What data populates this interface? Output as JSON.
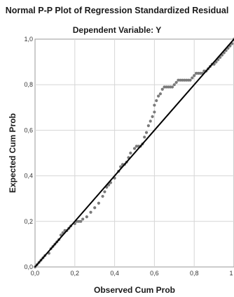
{
  "chart_data": {
    "type": "scatter",
    "title": "Normal P-P Plot of Regression Standardized Residual",
    "subtitle": "Dependent Variable: Y",
    "xlabel": "Observed Cum Prob",
    "ylabel": "Expected Cum Prob",
    "xlim": [
      0,
      1
    ],
    "ylim": [
      0,
      1
    ],
    "x_ticks": [
      "0,0",
      "0,2",
      "0,4",
      "0,6",
      "0,8",
      "1"
    ],
    "y_ticks": [
      "0,0",
      "0,2",
      "0,4",
      "0,6",
      "0,8",
      "1,0"
    ],
    "grid": true,
    "reference_line": {
      "from": [
        0,
        0
      ],
      "to": [
        1,
        1
      ],
      "color": "#000000"
    },
    "point_color": "#7a7a7a",
    "points": [
      [
        0.0,
        0.0
      ],
      [
        0.01,
        0.01
      ],
      [
        0.02,
        0.02
      ],
      [
        0.03,
        0.03
      ],
      [
        0.04,
        0.04
      ],
      [
        0.05,
        0.05
      ],
      [
        0.07,
        0.06
      ],
      [
        0.08,
        0.08
      ],
      [
        0.09,
        0.09
      ],
      [
        0.1,
        0.1
      ],
      [
        0.11,
        0.11
      ],
      [
        0.12,
        0.12
      ],
      [
        0.13,
        0.14
      ],
      [
        0.14,
        0.15
      ],
      [
        0.15,
        0.16
      ],
      [
        0.16,
        0.16
      ],
      [
        0.17,
        0.17
      ],
      [
        0.18,
        0.18
      ],
      [
        0.2,
        0.19
      ],
      [
        0.21,
        0.2
      ],
      [
        0.22,
        0.2
      ],
      [
        0.23,
        0.2
      ],
      [
        0.24,
        0.21
      ],
      [
        0.26,
        0.22
      ],
      [
        0.28,
        0.24
      ],
      [
        0.3,
        0.26
      ],
      [
        0.32,
        0.28
      ],
      [
        0.34,
        0.31
      ],
      [
        0.35,
        0.33
      ],
      [
        0.36,
        0.35
      ],
      [
        0.37,
        0.36
      ],
      [
        0.38,
        0.37
      ],
      [
        0.4,
        0.39
      ],
      [
        0.42,
        0.42
      ],
      [
        0.43,
        0.44
      ],
      [
        0.44,
        0.45
      ],
      [
        0.45,
        0.45
      ],
      [
        0.46,
        0.46
      ],
      [
        0.47,
        0.48
      ],
      [
        0.48,
        0.5
      ],
      [
        0.5,
        0.52
      ],
      [
        0.51,
        0.53
      ],
      [
        0.52,
        0.53
      ],
      [
        0.53,
        0.53
      ],
      [
        0.54,
        0.54
      ],
      [
        0.55,
        0.57
      ],
      [
        0.56,
        0.59
      ],
      [
        0.57,
        0.62
      ],
      [
        0.58,
        0.64
      ],
      [
        0.59,
        0.66
      ],
      [
        0.6,
        0.68
      ],
      [
        0.6,
        0.71
      ],
      [
        0.61,
        0.73
      ],
      [
        0.62,
        0.75
      ],
      [
        0.63,
        0.76
      ],
      [
        0.64,
        0.78
      ],
      [
        0.65,
        0.79
      ],
      [
        0.66,
        0.79
      ],
      [
        0.67,
        0.79
      ],
      [
        0.68,
        0.79
      ],
      [
        0.69,
        0.79
      ],
      [
        0.7,
        0.8
      ],
      [
        0.71,
        0.81
      ],
      [
        0.72,
        0.82
      ],
      [
        0.73,
        0.82
      ],
      [
        0.74,
        0.82
      ],
      [
        0.75,
        0.82
      ],
      [
        0.76,
        0.82
      ],
      [
        0.77,
        0.82
      ],
      [
        0.78,
        0.82
      ],
      [
        0.79,
        0.83
      ],
      [
        0.8,
        0.84
      ],
      [
        0.81,
        0.85
      ],
      [
        0.82,
        0.85
      ],
      [
        0.83,
        0.85
      ],
      [
        0.84,
        0.85
      ],
      [
        0.85,
        0.86
      ],
      [
        0.86,
        0.86
      ],
      [
        0.87,
        0.87
      ],
      [
        0.88,
        0.88
      ],
      [
        0.89,
        0.89
      ],
      [
        0.9,
        0.89
      ],
      [
        0.91,
        0.9
      ],
      [
        0.92,
        0.91
      ],
      [
        0.93,
        0.92
      ],
      [
        0.94,
        0.93
      ],
      [
        0.95,
        0.94
      ],
      [
        0.96,
        0.95
      ],
      [
        0.97,
        0.96
      ],
      [
        0.98,
        0.97
      ],
      [
        0.99,
        0.98
      ],
      [
        1.0,
        1.0
      ]
    ]
  }
}
